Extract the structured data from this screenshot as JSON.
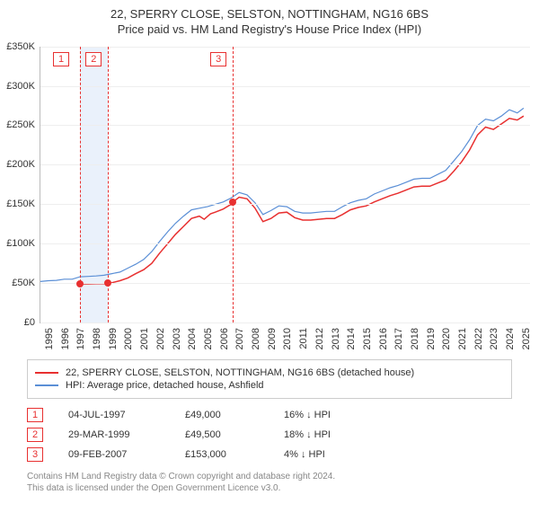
{
  "title": {
    "line1": "22, SPERRY CLOSE, SELSTON, NOTTINGHAM, NG16 6BS",
    "line2": "Price paid vs. HM Land Registry's House Price Index (HPI)",
    "fontsize": 13,
    "color": "#333333"
  },
  "chart": {
    "type": "line",
    "background_color": "#ffffff",
    "grid_color": "#eeeeee",
    "axis_color": "#bbbbbb",
    "tick_fontsize": 11,
    "x": {
      "min": 1995,
      "max": 2025.8,
      "ticks": [
        1995,
        1996,
        1997,
        1998,
        1999,
        2000,
        2001,
        2002,
        2003,
        2004,
        2005,
        2006,
        2007,
        2008,
        2009,
        2010,
        2011,
        2012,
        2013,
        2014,
        2015,
        2016,
        2017,
        2018,
        2019,
        2020,
        2021,
        2022,
        2023,
        2024,
        2025
      ]
    },
    "y": {
      "min": 0,
      "max": 350000,
      "ticks": [
        0,
        50000,
        100000,
        150000,
        200000,
        250000,
        300000,
        350000
      ],
      "tick_labels": [
        "£0",
        "£50K",
        "£100K",
        "£150K",
        "£200K",
        "£250K",
        "£300K",
        "£350K"
      ]
    },
    "band": {
      "from_x": 1997.5,
      "to_x": 1999.24,
      "color": "#eaf1fb"
    },
    "vlines": [
      {
        "x": 1997.5,
        "color": "#e83030"
      },
      {
        "x": 1999.24,
        "color": "#e83030"
      },
      {
        "x": 2007.11,
        "color": "#e83030"
      }
    ],
    "chart_markers": [
      {
        "n": "1",
        "x": 1996.3,
        "color": "#e83030"
      },
      {
        "n": "2",
        "x": 1998.35,
        "color": "#e83030"
      },
      {
        "n": "3",
        "x": 2006.2,
        "color": "#e83030"
      }
    ],
    "series": [
      {
        "name": "price_paid",
        "label": "22, SPERRY CLOSE, SELSTON, NOTTINGHAM, NG16 6BS (detached house)",
        "color": "#e83030",
        "line_width": 1.5,
        "points": [
          [
            1997.5,
            49000
          ],
          [
            1998.0,
            49000
          ],
          [
            1998.5,
            49200
          ],
          [
            1999.0,
            49400
          ],
          [
            1999.24,
            49500
          ],
          [
            1999.5,
            50500
          ],
          [
            2000.0,
            53000
          ],
          [
            2000.5,
            56500
          ],
          [
            2001.0,
            62000
          ],
          [
            2001.5,
            67000
          ],
          [
            2002.0,
            75000
          ],
          [
            2002.5,
            88000
          ],
          [
            2003.0,
            100000
          ],
          [
            2003.5,
            112000
          ],
          [
            2004.0,
            122000
          ],
          [
            2004.5,
            132000
          ],
          [
            2005.0,
            135000
          ],
          [
            2005.3,
            131000
          ],
          [
            2005.7,
            138000
          ],
          [
            2006.0,
            140000
          ],
          [
            2006.5,
            144000
          ],
          [
            2007.0,
            150000
          ],
          [
            2007.11,
            153000
          ],
          [
            2007.5,
            159000
          ],
          [
            2008.0,
            157000
          ],
          [
            2008.5,
            145000
          ],
          [
            2009.0,
            128000
          ],
          [
            2009.5,
            132000
          ],
          [
            2010.0,
            139000
          ],
          [
            2010.5,
            140000
          ],
          [
            2011.0,
            133000
          ],
          [
            2011.5,
            130000
          ],
          [
            2012.0,
            130000
          ],
          [
            2012.5,
            131000
          ],
          [
            2013.0,
            132000
          ],
          [
            2013.5,
            132000
          ],
          [
            2014.0,
            137000
          ],
          [
            2014.5,
            143000
          ],
          [
            2015.0,
            146000
          ],
          [
            2015.5,
            148000
          ],
          [
            2016.0,
            153000
          ],
          [
            2016.5,
            157000
          ],
          [
            2017.0,
            161000
          ],
          [
            2017.5,
            164000
          ],
          [
            2018.0,
            168000
          ],
          [
            2018.5,
            172000
          ],
          [
            2019.0,
            173000
          ],
          [
            2019.5,
            173000
          ],
          [
            2020.0,
            177000
          ],
          [
            2020.5,
            181000
          ],
          [
            2021.0,
            192000
          ],
          [
            2021.5,
            204000
          ],
          [
            2022.0,
            219000
          ],
          [
            2022.5,
            238000
          ],
          [
            2023.0,
            248000
          ],
          [
            2023.5,
            245000
          ],
          [
            2024.0,
            252000
          ],
          [
            2024.5,
            259000
          ],
          [
            2025.0,
            257000
          ],
          [
            2025.4,
            262000
          ]
        ],
        "sale_markers": [
          {
            "x": 1997.5,
            "y": 49000
          },
          {
            "x": 1999.24,
            "y": 49500
          },
          {
            "x": 2007.11,
            "y": 153000
          }
        ]
      },
      {
        "name": "hpi",
        "label": "HPI: Average price, detached house, Ashfield",
        "color": "#5b8fd6",
        "line_width": 1.2,
        "points": [
          [
            1995.0,
            52000
          ],
          [
            1995.5,
            53000
          ],
          [
            1996.0,
            53500
          ],
          [
            1996.5,
            55000
          ],
          [
            1997.0,
            55000
          ],
          [
            1997.5,
            58000
          ],
          [
            1998.0,
            58500
          ],
          [
            1998.5,
            59000
          ],
          [
            1999.0,
            60000
          ],
          [
            1999.5,
            62000
          ],
          [
            2000.0,
            64000
          ],
          [
            2000.5,
            69000
          ],
          [
            2001.0,
            74000
          ],
          [
            2001.5,
            80000
          ],
          [
            2002.0,
            90000
          ],
          [
            2002.5,
            103000
          ],
          [
            2003.0,
            115000
          ],
          [
            2003.5,
            126000
          ],
          [
            2004.0,
            135000
          ],
          [
            2004.5,
            143000
          ],
          [
            2005.0,
            145000
          ],
          [
            2005.5,
            147000
          ],
          [
            2006.0,
            150000
          ],
          [
            2006.5,
            153000
          ],
          [
            2007.0,
            158000
          ],
          [
            2007.5,
            165000
          ],
          [
            2008.0,
            162000
          ],
          [
            2008.5,
            152000
          ],
          [
            2009.0,
            137000
          ],
          [
            2009.5,
            142000
          ],
          [
            2010.0,
            148000
          ],
          [
            2010.5,
            147000
          ],
          [
            2011.0,
            141000
          ],
          [
            2011.5,
            139000
          ],
          [
            2012.0,
            139000
          ],
          [
            2012.5,
            140000
          ],
          [
            2013.0,
            141000
          ],
          [
            2013.5,
            141000
          ],
          [
            2014.0,
            147000
          ],
          [
            2014.5,
            152000
          ],
          [
            2015.0,
            155000
          ],
          [
            2015.5,
            157000
          ],
          [
            2016.0,
            163000
          ],
          [
            2016.5,
            167000
          ],
          [
            2017.0,
            171000
          ],
          [
            2017.5,
            174000
          ],
          [
            2018.0,
            178000
          ],
          [
            2018.5,
            182000
          ],
          [
            2019.0,
            183000
          ],
          [
            2019.5,
            183000
          ],
          [
            2020.0,
            188000
          ],
          [
            2020.5,
            193000
          ],
          [
            2021.0,
            205000
          ],
          [
            2021.5,
            217000
          ],
          [
            2022.0,
            232000
          ],
          [
            2022.5,
            250000
          ],
          [
            2023.0,
            258000
          ],
          [
            2023.5,
            256000
          ],
          [
            2024.0,
            262000
          ],
          [
            2024.5,
            270000
          ],
          [
            2025.0,
            266000
          ],
          [
            2025.4,
            272000
          ]
        ]
      }
    ]
  },
  "legend": {
    "border_color": "#cccccc",
    "fontsize": 11
  },
  "sales": [
    {
      "n": "1",
      "date": "04-JUL-1997",
      "price": "£49,000",
      "diff": "16% ↓ HPI",
      "color": "#e83030"
    },
    {
      "n": "2",
      "date": "29-MAR-1999",
      "price": "£49,500",
      "diff": "18% ↓ HPI",
      "color": "#e83030"
    },
    {
      "n": "3",
      "date": "09-FEB-2007",
      "price": "£153,000",
      "diff": "4% ↓ HPI",
      "color": "#e83030"
    }
  ],
  "footnote": {
    "line1": "Contains HM Land Registry data © Crown copyright and database right 2024.",
    "line2": "This data is licensed under the Open Government Licence v3.0.",
    "color": "#888888",
    "fontsize": 10
  }
}
